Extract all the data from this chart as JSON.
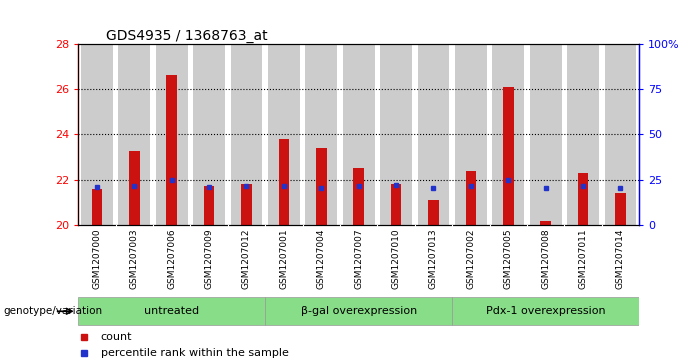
{
  "title": "GDS4935 / 1368763_at",
  "samples": [
    "GSM1207000",
    "GSM1207003",
    "GSM1207006",
    "GSM1207009",
    "GSM1207012",
    "GSM1207001",
    "GSM1207004",
    "GSM1207007",
    "GSM1207010",
    "GSM1207013",
    "GSM1207002",
    "GSM1207005",
    "GSM1207008",
    "GSM1207011",
    "GSM1207014"
  ],
  "red_values": [
    21.6,
    23.25,
    26.6,
    21.7,
    21.8,
    23.8,
    23.4,
    22.5,
    21.8,
    21.1,
    22.4,
    26.1,
    20.2,
    22.3,
    21.4
  ],
  "blue_values": [
    21.68,
    21.72,
    22.0,
    21.68,
    21.72,
    21.7,
    21.64,
    21.72,
    21.76,
    21.62,
    21.72,
    22.0,
    21.62,
    21.72,
    21.64
  ],
  "y_min": 20,
  "y_max": 28,
  "y_ticks_left": [
    20,
    22,
    24,
    26,
    28
  ],
  "y_ticks_right": [
    0,
    25,
    50,
    75,
    100
  ],
  "right_axis_labels": [
    "0",
    "25",
    "50",
    "75",
    "100%"
  ],
  "groups": [
    {
      "label": "untreated",
      "indices": [
        0,
        1,
        2,
        3,
        4
      ]
    },
    {
      "label": "β-gal overexpression",
      "indices": [
        5,
        6,
        7,
        8,
        9
      ]
    },
    {
      "label": "Pdx-1 overexpression",
      "indices": [
        10,
        11,
        12,
        13,
        14
      ]
    }
  ],
  "group_label_prefix": "genotype/variation",
  "bar_color_red": "#cc1111",
  "bar_color_blue": "#2233cc",
  "group_bg_color": "#88dd88",
  "bar_bg_color": "#cccccc",
  "legend_labels": [
    "count",
    "percentile rank within the sample"
  ]
}
